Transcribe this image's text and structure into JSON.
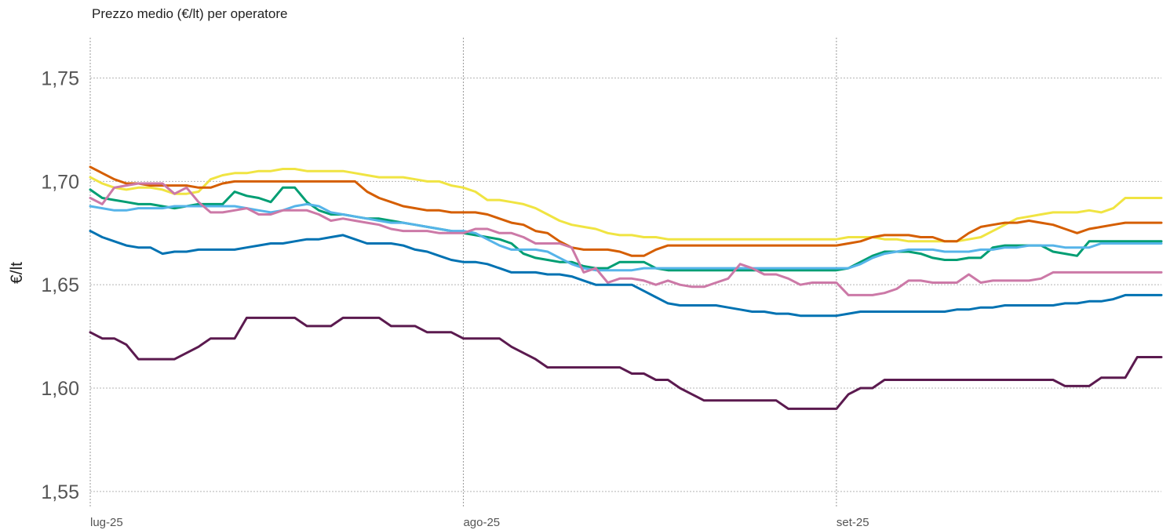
{
  "chart_data": {
    "type": "line",
    "title": "Prezzo medio (€/lt) per operatore",
    "ylabel": "€/lt",
    "xlabel": "",
    "ylim": [
      1.545,
      1.765
    ],
    "yticks": [
      1.55,
      1.6,
      1.65,
      1.7,
      1.75
    ],
    "ytick_labels": [
      "1,55",
      "1,60",
      "1,65",
      "1,70",
      "1,75"
    ],
    "xlim": [
      0,
      89
    ],
    "xticks": [
      0,
      31,
      62
    ],
    "xtick_labels": [
      "lug-25",
      "ago-25",
      "set-25"
    ],
    "grid": true,
    "series": [
      {
        "color": "#f0e442",
        "values": [
          1.702,
          1.699,
          1.697,
          1.696,
          1.697,
          1.697,
          1.696,
          1.694,
          1.694,
          1.695,
          1.701,
          1.703,
          1.704,
          1.704,
          1.705,
          1.705,
          1.706,
          1.706,
          1.705,
          1.705,
          1.705,
          1.705,
          1.704,
          1.703,
          1.702,
          1.702,
          1.702,
          1.701,
          1.7,
          1.7,
          1.698,
          1.697,
          1.695,
          1.691,
          1.691,
          1.69,
          1.689,
          1.687,
          1.684,
          1.681,
          1.679,
          1.678,
          1.677,
          1.675,
          1.674,
          1.674,
          1.673,
          1.673,
          1.672,
          1.672,
          1.672,
          1.672,
          1.672,
          1.672,
          1.672,
          1.672,
          1.672,
          1.672,
          1.672,
          1.672,
          1.672,
          1.672,
          1.672,
          1.673,
          1.673,
          1.673,
          1.672,
          1.672,
          1.671,
          1.671,
          1.671,
          1.671,
          1.671,
          1.672,
          1.673,
          1.676,
          1.679,
          1.682,
          1.683,
          1.684,
          1.685,
          1.685,
          1.685,
          1.686,
          1.685,
          1.687,
          1.692,
          1.692,
          1.692,
          1.692
        ]
      },
      {
        "color": "#d55e00",
        "values": [
          1.707,
          1.704,
          1.701,
          1.699,
          1.699,
          1.698,
          1.698,
          1.698,
          1.698,
          1.697,
          1.697,
          1.699,
          1.7,
          1.7,
          1.7,
          1.7,
          1.7,
          1.7,
          1.7,
          1.7,
          1.7,
          1.7,
          1.7,
          1.695,
          1.692,
          1.69,
          1.688,
          1.687,
          1.686,
          1.686,
          1.685,
          1.685,
          1.685,
          1.684,
          1.682,
          1.68,
          1.679,
          1.676,
          1.675,
          1.671,
          1.668,
          1.667,
          1.667,
          1.667,
          1.666,
          1.664,
          1.664,
          1.667,
          1.669,
          1.669,
          1.669,
          1.669,
          1.669,
          1.669,
          1.669,
          1.669,
          1.669,
          1.669,
          1.669,
          1.669,
          1.669,
          1.669,
          1.669,
          1.67,
          1.671,
          1.673,
          1.674,
          1.674,
          1.674,
          1.673,
          1.673,
          1.671,
          1.671,
          1.675,
          1.678,
          1.679,
          1.68,
          1.68,
          1.681,
          1.68,
          1.679,
          1.677,
          1.675,
          1.677,
          1.678,
          1.679,
          1.68,
          1.68,
          1.68,
          1.68
        ]
      },
      {
        "color": "#009e73",
        "values": [
          1.696,
          1.692,
          1.691,
          1.69,
          1.689,
          1.689,
          1.688,
          1.687,
          1.688,
          1.689,
          1.689,
          1.689,
          1.695,
          1.693,
          1.692,
          1.69,
          1.697,
          1.697,
          1.69,
          1.686,
          1.684,
          1.684,
          1.683,
          1.682,
          1.682,
          1.681,
          1.68,
          1.679,
          1.678,
          1.677,
          1.676,
          1.675,
          1.674,
          1.673,
          1.672,
          1.67,
          1.665,
          1.663,
          1.662,
          1.661,
          1.661,
          1.659,
          1.658,
          1.658,
          1.661,
          1.661,
          1.661,
          1.658,
          1.657,
          1.657,
          1.657,
          1.657,
          1.657,
          1.657,
          1.657,
          1.657,
          1.657,
          1.657,
          1.657,
          1.657,
          1.657,
          1.657,
          1.657,
          1.658,
          1.661,
          1.664,
          1.666,
          1.666,
          1.666,
          1.665,
          1.663,
          1.662,
          1.662,
          1.663,
          1.663,
          1.668,
          1.669,
          1.669,
          1.669,
          1.669,
          1.666,
          1.665,
          1.664,
          1.671,
          1.671,
          1.671,
          1.671,
          1.671,
          1.671,
          1.671
        ]
      },
      {
        "color": "#56b4e9",
        "values": [
          1.688,
          1.687,
          1.686,
          1.686,
          1.687,
          1.687,
          1.687,
          1.688,
          1.688,
          1.688,
          1.688,
          1.688,
          1.688,
          1.687,
          1.686,
          1.685,
          1.686,
          1.688,
          1.689,
          1.688,
          1.685,
          1.684,
          1.683,
          1.682,
          1.681,
          1.68,
          1.68,
          1.679,
          1.678,
          1.677,
          1.676,
          1.676,
          1.675,
          1.672,
          1.669,
          1.667,
          1.667,
          1.667,
          1.666,
          1.663,
          1.66,
          1.658,
          1.657,
          1.657,
          1.657,
          1.657,
          1.658,
          1.658,
          1.658,
          1.658,
          1.658,
          1.658,
          1.658,
          1.658,
          1.658,
          1.658,
          1.658,
          1.658,
          1.658,
          1.658,
          1.658,
          1.658,
          1.658,
          1.658,
          1.66,
          1.663,
          1.665,
          1.666,
          1.667,
          1.667,
          1.667,
          1.666,
          1.666,
          1.666,
          1.667,
          1.667,
          1.668,
          1.668,
          1.669,
          1.669,
          1.669,
          1.668,
          1.668,
          1.668,
          1.67,
          1.67,
          1.67,
          1.67,
          1.67,
          1.67
        ]
      },
      {
        "color": "#cc79a7",
        "values": [
          1.692,
          1.689,
          1.697,
          1.698,
          1.699,
          1.699,
          1.699,
          1.694,
          1.697,
          1.69,
          1.685,
          1.685,
          1.686,
          1.687,
          1.684,
          1.684,
          1.686,
          1.686,
          1.686,
          1.684,
          1.681,
          1.682,
          1.681,
          1.68,
          1.679,
          1.677,
          1.676,
          1.676,
          1.676,
          1.675,
          1.675,
          1.675,
          1.677,
          1.677,
          1.675,
          1.675,
          1.673,
          1.67,
          1.67,
          1.67,
          1.668,
          1.656,
          1.658,
          1.651,
          1.653,
          1.653,
          1.652,
          1.65,
          1.652,
          1.65,
          1.649,
          1.649,
          1.651,
          1.653,
          1.66,
          1.658,
          1.655,
          1.655,
          1.653,
          1.65,
          1.651,
          1.651,
          1.651,
          1.645,
          1.645,
          1.645,
          1.646,
          1.648,
          1.652,
          1.652,
          1.651,
          1.651,
          1.651,
          1.655,
          1.651,
          1.652,
          1.652,
          1.652,
          1.652,
          1.653,
          1.656,
          1.656,
          1.656,
          1.656,
          1.656,
          1.656,
          1.656,
          1.656,
          1.656,
          1.656
        ]
      },
      {
        "color": "#0072b2",
        "values": [
          1.676,
          1.673,
          1.671,
          1.669,
          1.668,
          1.668,
          1.665,
          1.666,
          1.666,
          1.667,
          1.667,
          1.667,
          1.667,
          1.668,
          1.669,
          1.67,
          1.67,
          1.671,
          1.672,
          1.672,
          1.673,
          1.674,
          1.672,
          1.67,
          1.67,
          1.67,
          1.669,
          1.667,
          1.666,
          1.664,
          1.662,
          1.661,
          1.661,
          1.66,
          1.658,
          1.656,
          1.656,
          1.656,
          1.655,
          1.655,
          1.654,
          1.652,
          1.65,
          1.65,
          1.65,
          1.65,
          1.647,
          1.644,
          1.641,
          1.64,
          1.64,
          1.64,
          1.64,
          1.639,
          1.638,
          1.637,
          1.637,
          1.636,
          1.636,
          1.635,
          1.635,
          1.635,
          1.635,
          1.636,
          1.637,
          1.637,
          1.637,
          1.637,
          1.637,
          1.637,
          1.637,
          1.637,
          1.638,
          1.638,
          1.639,
          1.639,
          1.64,
          1.64,
          1.64,
          1.64,
          1.64,
          1.641,
          1.641,
          1.642,
          1.642,
          1.643,
          1.645,
          1.645,
          1.645,
          1.645
        ]
      },
      {
        "color": "#5b1a4f",
        "values": [
          1.627,
          1.624,
          1.624,
          1.621,
          1.614,
          1.614,
          1.614,
          1.614,
          1.617,
          1.62,
          1.624,
          1.624,
          1.624,
          1.634,
          1.634,
          1.634,
          1.634,
          1.634,
          1.63,
          1.63,
          1.63,
          1.634,
          1.634,
          1.634,
          1.634,
          1.63,
          1.63,
          1.63,
          1.627,
          1.627,
          1.627,
          1.624,
          1.624,
          1.624,
          1.624,
          1.62,
          1.617,
          1.614,
          1.61,
          1.61,
          1.61,
          1.61,
          1.61,
          1.61,
          1.61,
          1.607,
          1.607,
          1.604,
          1.604,
          1.6,
          1.597,
          1.594,
          1.594,
          1.594,
          1.594,
          1.594,
          1.594,
          1.594,
          1.59,
          1.59,
          1.59,
          1.59,
          1.59,
          1.597,
          1.6,
          1.6,
          1.604,
          1.604,
          1.604,
          1.604,
          1.604,
          1.604,
          1.604,
          1.604,
          1.604,
          1.604,
          1.604,
          1.604,
          1.604,
          1.604,
          1.604,
          1.601,
          1.601,
          1.601,
          1.605,
          1.605,
          1.605,
          1.615,
          1.615,
          1.615
        ]
      }
    ]
  }
}
